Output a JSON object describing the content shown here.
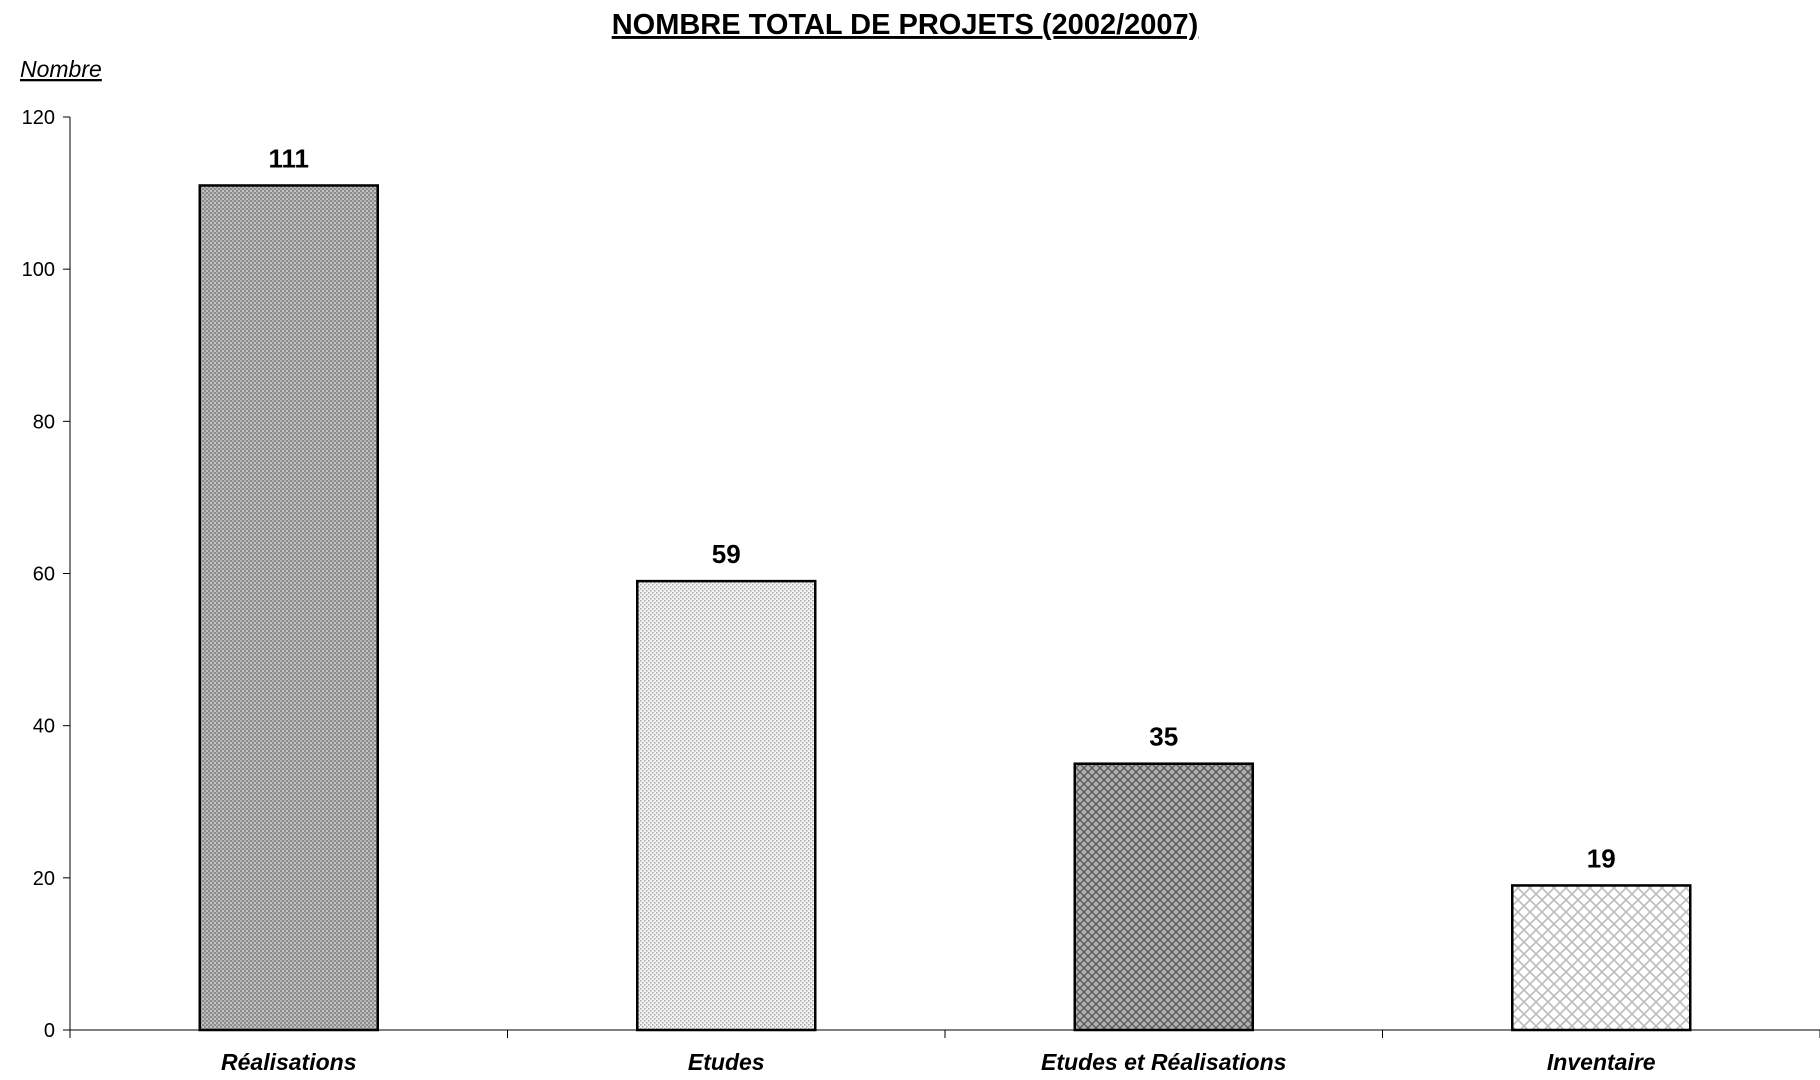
{
  "chart_data": {
    "type": "bar",
    "title": "NOMBRE TOTAL DE PROJETS (2002/2007)",
    "ylabel": "Nombre",
    "xlabel": "",
    "categories": [
      "Réalisations",
      "Etudes",
      "Etudes et Réalisations",
      "Inventaire"
    ],
    "values": [
      111,
      59,
      35,
      19
    ],
    "data_labels": [
      "111",
      "59",
      "35",
      "19"
    ],
    "ylim": [
      0,
      120
    ],
    "yticks": [
      0,
      20,
      40,
      60,
      80,
      100,
      120
    ],
    "ytick_labels": [
      "0",
      "20",
      "40",
      "60",
      "80",
      "100",
      "120"
    ],
    "grid": false,
    "legend": "none",
    "bar_patterns": [
      "dense-dots-dark",
      "sparse-dots-light",
      "diamond-grid-dark",
      "diamond-grid-light"
    ]
  }
}
